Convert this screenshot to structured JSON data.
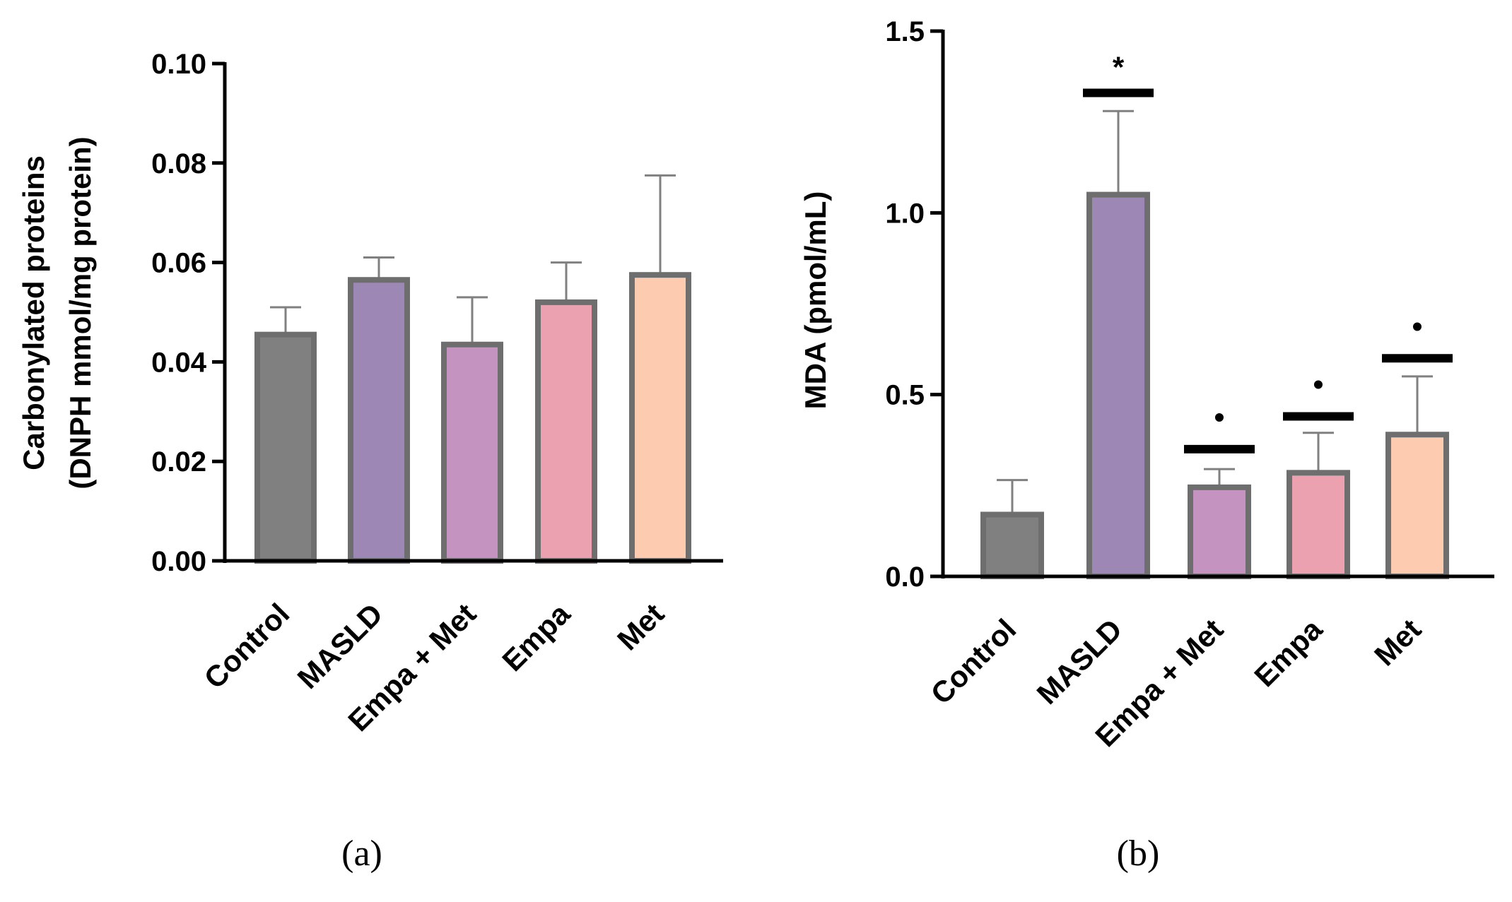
{
  "chart_data": [
    {
      "type": "bar",
      "panel_label": "a",
      "ylabel_lines": [
        "Carbonylated proteins",
        "(DNPH mmol/mg protein)"
      ],
      "categories": [
        "Control",
        "MASLD",
        "Empa + Met",
        "Empa",
        "Met"
      ],
      "values": [
        0.0455,
        0.0565,
        0.0435,
        0.052,
        0.0575
      ],
      "error_upper": [
        0.051,
        0.061,
        0.053,
        0.06,
        0.0775
      ],
      "ylim": [
        0,
        0.1
      ],
      "yticks": [
        "0.00",
        "0.02",
        "0.04",
        "0.06",
        "0.08",
        "0.10"
      ],
      "annotations": []
    },
    {
      "type": "bar",
      "panel_label": "b",
      "ylabel_lines": [
        "MDA (pmol/mL)"
      ],
      "categories": [
        "Control",
        "MASLD",
        "Empa + Met",
        "Empa",
        "Met"
      ],
      "values": [
        0.17,
        1.05,
        0.245,
        0.285,
        0.39
      ],
      "error_upper": [
        0.265,
        1.28,
        0.295,
        0.395,
        0.55
      ],
      "ylim": [
        0,
        1.5
      ],
      "yticks": [
        "0.0",
        "0.5",
        "1.0",
        "1.5"
      ],
      "annotations": [
        {
          "category": "MASLD",
          "symbol": "*",
          "line_y": 1.33
        },
        {
          "category": "Empa + Met",
          "symbol": "•",
          "line_y": 0.35
        },
        {
          "category": "Empa",
          "symbol": "•",
          "line_y": 0.44
        },
        {
          "category": "Met",
          "symbol": "•",
          "line_y": 0.6
        }
      ]
    }
  ],
  "colors": {
    "bars": [
      "#808080",
      "#9d87b5",
      "#c493c0",
      "#eba1b0",
      "#fdcbb0"
    ],
    "bar_border": "#6e6e6e",
    "error_bar": "#808080",
    "axis": "#000000"
  },
  "captions": [
    "(a)",
    "(b)"
  ]
}
